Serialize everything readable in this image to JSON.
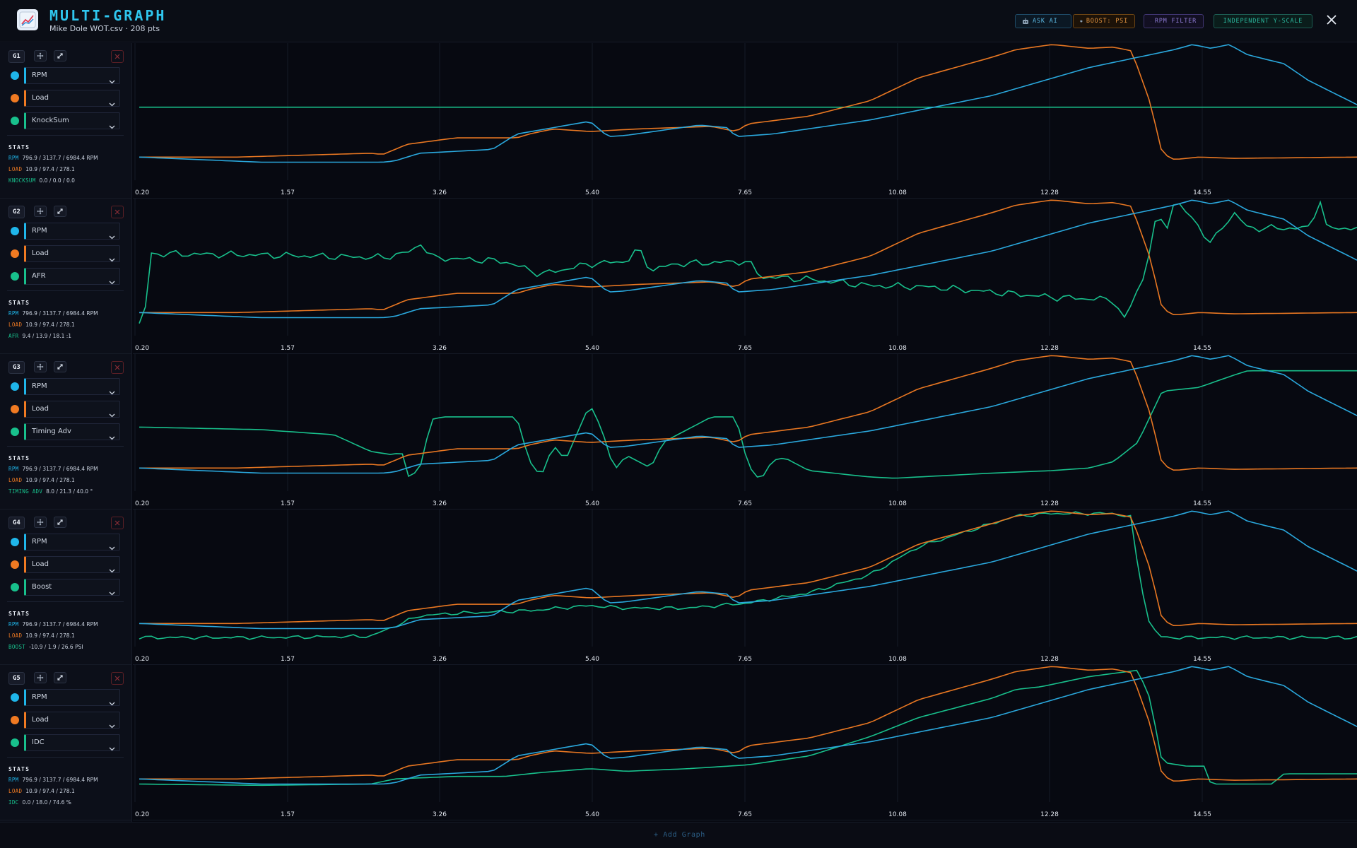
{
  "header": {
    "title": "MULTI-GRAPH",
    "subtitle": "Mike Dole WOT.csv · 208 pts",
    "buttons": {
      "ask_ai": "ASK AI",
      "boost": "BOOST: PSI",
      "rpm_filter": "RPM FILTER",
      "independent": "INDEPENDENT Y-SCALE"
    }
  },
  "colors": {
    "channel_1": "#1fb6ea",
    "channel_2": "#f07a22",
    "channel_3": "#18c08c",
    "rpm_line": "#2aa8dd",
    "load_line": "#e87722",
    "accent": "#2fc6ee"
  },
  "footer": {
    "add_graph": "+ Add Graph"
  },
  "stats_title": "STATS",
  "x_ticks": [
    "0.20",
    "1.57",
    "3.26",
    "5.40",
    "7.65",
    "10.08",
    "12.28",
    "14.55"
  ],
  "graphs": [
    {
      "label": "G1",
      "channels": [
        "RPM",
        "Load",
        "KnockSum"
      ],
      "stats": [
        {
          "name": "RPM",
          "value": "796.9 / 3137.7 / 6984.4 RPM"
        },
        {
          "name": "LOAD",
          "value": "10.9 / 97.4 / 278.1"
        },
        {
          "name": "KNOCKSUM",
          "value": "0.0 / 0.0 / 0.0"
        }
      ]
    },
    {
      "label": "G2",
      "channels": [
        "RPM",
        "Load",
        "AFR"
      ],
      "stats": [
        {
          "name": "RPM",
          "value": "796.9 / 3137.7 / 6984.4 RPM"
        },
        {
          "name": "LOAD",
          "value": "10.9 / 97.4 / 278.1"
        },
        {
          "name": "AFR",
          "value": "9.4 / 13.9 / 18.1 :1"
        }
      ]
    },
    {
      "label": "G3",
      "channels": [
        "RPM",
        "Load",
        "Timing Adv"
      ],
      "stats": [
        {
          "name": "RPM",
          "value": "796.9 / 3137.7 / 6984.4 RPM"
        },
        {
          "name": "LOAD",
          "value": "10.9 / 97.4 / 278.1"
        },
        {
          "name": "TIMING ADV",
          "value": "8.0 / 21.3 / 40.0 °"
        }
      ]
    },
    {
      "label": "G4",
      "channels": [
        "RPM",
        "Load",
        "Boost"
      ],
      "stats": [
        {
          "name": "RPM",
          "value": "796.9 / 3137.7 / 6984.4 RPM"
        },
        {
          "name": "LOAD",
          "value": "10.9 / 97.4 / 278.1"
        },
        {
          "name": "BOOST",
          "value": "-10.9 / 1.9 / 26.6 PSI"
        }
      ]
    },
    {
      "label": "G5",
      "channels": [
        "RPM",
        "Load",
        "IDC"
      ],
      "stats": [
        {
          "name": "RPM",
          "value": "796.9 / 3137.7 / 6984.4 RPM"
        },
        {
          "name": "LOAD",
          "value": "10.9 / 97.4 / 278.1"
        },
        {
          "name": "IDC",
          "value": "0.0 / 18.0 / 74.6 %"
        }
      ]
    }
  ]
}
